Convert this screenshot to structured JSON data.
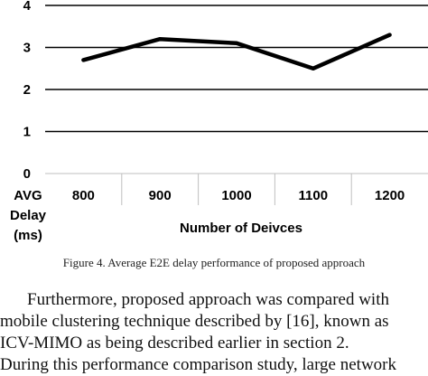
{
  "chart_data": {
    "type": "line",
    "categories": [
      "800",
      "900",
      "1000",
      "1100",
      "1200"
    ],
    "values": [
      2.7,
      3.2,
      3.1,
      2.5,
      3.3
    ],
    "ylim": [
      0,
      4
    ],
    "yticks": [
      "0",
      "1",
      "2",
      "3",
      "4"
    ],
    "ylabel_lines": [
      "AVG",
      "Delay",
      "(ms)"
    ],
    "xlabel": "Number of Deivces",
    "grid": true,
    "line_color": "#000000"
  },
  "caption": "Figure 4.    Average E2E delay performance of proposed approach",
  "body_lines": [
    "Furthermore, proposed approach was compared with",
    "mobile clustering technique described by [16], known as",
    "ICV-MIMO as being described earlier in section 2.",
    "During this performance comparison study, large network"
  ]
}
